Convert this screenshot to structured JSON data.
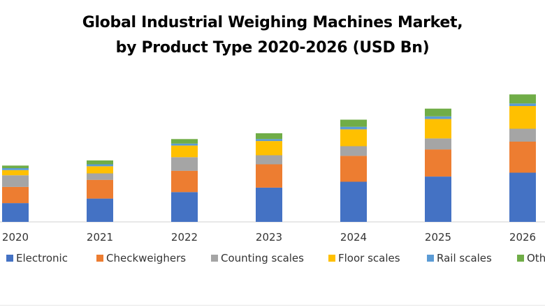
{
  "chart_data": {
    "type": "bar",
    "stacked": true,
    "title": "Global Industrial Weighing Machines Market,",
    "subtitle": "by Product Type 2020-2026 (USD Bn)",
    "xlabel": "",
    "ylabel": "",
    "categories": [
      "2020",
      "2021",
      "2022",
      "2023",
      "2024",
      "2025",
      "2026"
    ],
    "series": [
      {
        "name": "Electronic",
        "color": "#4472C4",
        "values": [
          2.9,
          3.6,
          4.6,
          5.3,
          6.2,
          7.0,
          7.6
        ]
      },
      {
        "name": "Checkweighers",
        "color": "#ED7D31",
        "values": [
          2.5,
          2.9,
          3.3,
          3.6,
          4.0,
          4.2,
          4.8
        ]
      },
      {
        "name": "Counting scales",
        "color": "#A5A5A5",
        "values": [
          1.8,
          1.0,
          2.1,
          1.4,
          1.5,
          1.7,
          2.0
        ]
      },
      {
        "name": "Floor scales",
        "color": "#FFC000",
        "values": [
          0.8,
          1.1,
          1.8,
          2.2,
          2.6,
          3.0,
          3.5
        ]
      },
      {
        "name": "Rail scales",
        "color": "#5B9BD5",
        "values": [
          0.3,
          0.3,
          0.3,
          0.3,
          0.4,
          0.4,
          0.4
        ]
      },
      {
        "name": "Others",
        "color": "#70AD47",
        "values": [
          0.4,
          0.6,
          0.7,
          0.9,
          1.1,
          1.2,
          1.4
        ]
      }
    ],
    "ylim": [
      0,
      22
    ],
    "grid": false,
    "legend_position": "bottom"
  }
}
